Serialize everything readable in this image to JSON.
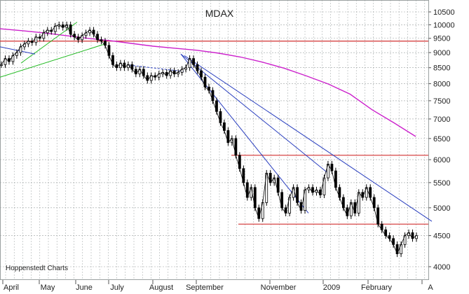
{
  "chart_data": {
    "type": "line",
    "title": "MDAX",
    "source": "Hoppenstedt Charts",
    "y_scale": "log",
    "ylim": [
      3800,
      10900
    ],
    "y_ticks": [
      "4000",
      "4500",
      "5000",
      "5500",
      "6000",
      "6500",
      "7000",
      "7500",
      "8000",
      "8500",
      "9000",
      "9500",
      "10000",
      "10500"
    ],
    "x_labels": [
      "April",
      "May",
      "June",
      "July",
      "August",
      "September",
      "November",
      "2009",
      "February",
      "A"
    ],
    "grid": true,
    "colors": {
      "price": "#000000",
      "moving_average": "#cc22cc",
      "horizontal_levels": "#d23030",
      "trend_down": "#2a3fbf",
      "trend_up": "#22bb22",
      "grid": "#9aa0a0"
    },
    "series": [
      {
        "style": "candlestick",
        "values": [
          8600,
          8800,
          8700,
          8900,
          9000,
          9200,
          9300,
          9400,
          9350,
          9550,
          9500,
          9700,
          9800,
          9750,
          9950,
          10000,
          9900,
          10000,
          9650,
          9550,
          9450,
          9600,
          9700,
          9800,
          9650,
          9450,
          9400,
          9250,
          8900,
          8600,
          8500,
          8650,
          8500,
          8600,
          8450,
          8300,
          8450,
          8250,
          8100,
          8250,
          8200,
          8300,
          8350,
          8250,
          8400,
          8300,
          8350,
          8450,
          8500,
          8800,
          8600,
          8400,
          8200,
          7900,
          7800,
          7500,
          7200,
          6900,
          6700,
          6400,
          6500,
          6100,
          5800,
          5500,
          5200,
          5400,
          5000,
          4800,
          5100,
          5700,
          5500,
          5600,
          5300,
          5000,
          4900,
          5200,
          5400,
          5100,
          4950,
          5350,
          5400,
          5300,
          5350,
          5250,
          5600,
          5900,
          5750,
          5400,
          5200,
          5000,
          4850,
          5100,
          4900,
          5300,
          5200,
          5400,
          5200,
          5000,
          4700,
          4600,
          4500,
          4450,
          4350,
          4200,
          4350,
          4500,
          4550,
          4450,
          4500
        ]
      },
      {
        "style": "moving-average",
        "values": [
          9850,
          9780,
          9700,
          9600,
          9500,
          9420,
          9320,
          9220,
          9150,
          9080,
          8980,
          8850,
          8680,
          8480,
          8240,
          7990,
          7690,
          7250,
          6900,
          6550
        ]
      }
    ],
    "horizontal_levels": [
      9400,
      6100,
      4700
    ],
    "trend_lines": [
      {
        "kind": "down",
        "from": [
          263,
          8900
        ],
        "to": [
          616,
          4750
        ]
      },
      {
        "kind": "down",
        "from": [
          258,
          8950
        ],
        "to": [
          468,
          5700
        ]
      },
      {
        "kind": "down",
        "from": [
          258,
          8950
        ],
        "to": [
          440,
          4900
        ]
      },
      {
        "kind": "up",
        "from": [
          0,
          8200
        ],
        "to": [
          150,
          9300
        ]
      },
      {
        "kind": "up",
        "from": [
          30,
          8650
        ],
        "to": [
          110,
          10100
        ]
      },
      {
        "kind": "down",
        "from": [
          0,
          9200
        ],
        "to": [
          50,
          8950
        ]
      },
      {
        "kind": "flat",
        "from": [
          185,
          8580
        ],
        "to": [
          262,
          8380
        ]
      }
    ]
  }
}
